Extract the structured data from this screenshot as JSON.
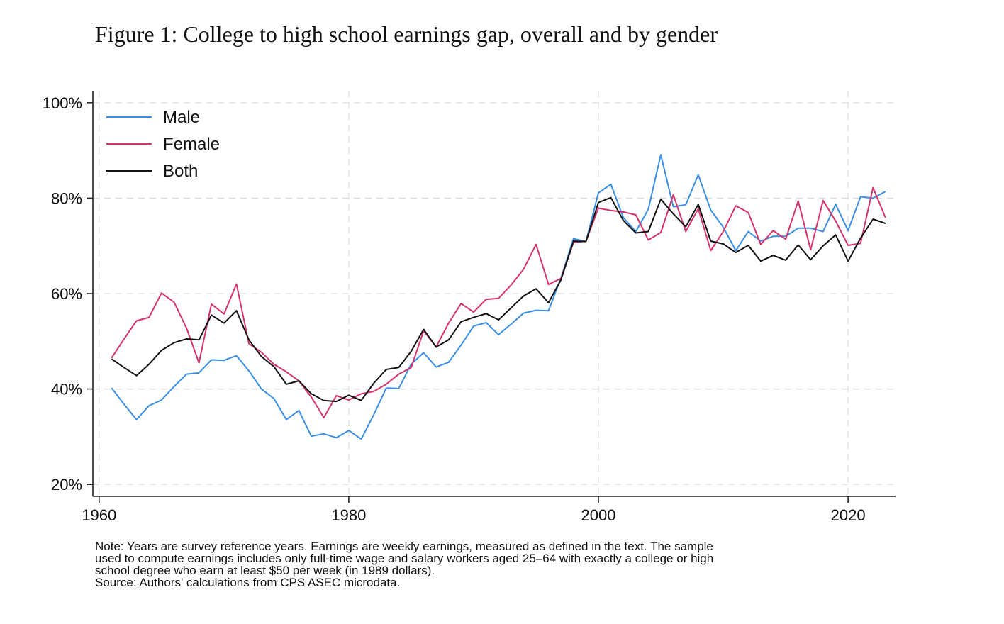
{
  "title": "Figure 1: College to high school earnings gap, overall and by gender",
  "note_lines": [
    "Note: Years are survey reference years. Earnings are weekly earnings, measured as defined in the text. The sample",
    "used to compute earnings includes only full-time wage and salary workers aged 25–64 with exactly a college or high",
    "school degree who earn at least $50 per week (in 1989 dollars).",
    "Source: Authors' calculations from CPS ASEC microdata."
  ],
  "colors": {
    "male": "#3a8ee6",
    "female": "#d6336c",
    "both": "#111111",
    "grid": "#dddddd",
    "axis": "#222222"
  },
  "chart_data": {
    "type": "line",
    "title": "Figure 1: College to high school earnings gap, overall and by gender",
    "xlabel": "",
    "ylabel": "",
    "xlim": [
      1959.5,
      2023.8
    ],
    "ylim": [
      17.5,
      102.5
    ],
    "x_ticks": [
      1960,
      1980,
      2000,
      2020
    ],
    "y_ticks": [
      20,
      40,
      60,
      80,
      100
    ],
    "y_tick_labels": [
      "20%",
      "40%",
      "60%",
      "80%",
      "100%"
    ],
    "grid": true,
    "legend_position": "top-left",
    "x": [
      1961,
      1962,
      1963,
      1964,
      1965,
      1966,
      1967,
      1968,
      1969,
      1970,
      1971,
      1972,
      1973,
      1974,
      1975,
      1976,
      1977,
      1978,
      1979,
      1980,
      1981,
      1982,
      1983,
      1984,
      1985,
      1986,
      1987,
      1988,
      1989,
      1990,
      1991,
      1992,
      1993,
      1994,
      1995,
      1996,
      1997,
      1998,
      1999,
      2000,
      2001,
      2002,
      2003,
      2004,
      2005,
      2006,
      2007,
      2008,
      2009,
      2010,
      2011,
      2012,
      2013,
      2014,
      2015,
      2016,
      2017,
      2018,
      2019,
      2020,
      2021,
      2022,
      2023
    ],
    "series": [
      {
        "name": "Male",
        "color": "#3a8ee6",
        "values": [
          40.2,
          36.8,
          33.6,
          36.5,
          37.7,
          40.5,
          43.1,
          43.4,
          46.1,
          46.0,
          47.0,
          43.8,
          40.0,
          38.0,
          33.6,
          35.5,
          30.1,
          30.6,
          29.8,
          31.3,
          29.5,
          34.6,
          40.2,
          40.1,
          45.2,
          47.6,
          44.6,
          45.6,
          49.2,
          53.2,
          53.9,
          51.4,
          53.6,
          55.9,
          56.5,
          56.4,
          63.3,
          71.5,
          70.9,
          81.1,
          82.9,
          75.9,
          73.0,
          77.7,
          89.1,
          78.2,
          78.6,
          84.9,
          77.5,
          73.9,
          69.0,
          73.0,
          71.0,
          72.0,
          72.0,
          73.7,
          73.7,
          73.0,
          78.7,
          73.2,
          80.3,
          80.0,
          81.4
        ]
      },
      {
        "name": "Female",
        "color": "#d6336c",
        "values": [
          46.5,
          50.5,
          54.3,
          55.0,
          60.1,
          58.2,
          52.8,
          45.5,
          57.8,
          55.7,
          62.0,
          49.5,
          47.7,
          45.2,
          43.6,
          41.7,
          38.3,
          34.0,
          38.6,
          37.7,
          39.0,
          39.5,
          41.0,
          43.1,
          44.5,
          52.2,
          48.8,
          53.8,
          57.9,
          56.1,
          58.8,
          59.0,
          61.8,
          65.1,
          70.3,
          61.9,
          63.2,
          70.7,
          71.0,
          77.9,
          77.4,
          77.1,
          76.5,
          71.2,
          72.8,
          80.7,
          73.0,
          77.8,
          69.0,
          73.0,
          78.4,
          77.0,
          70.3,
          73.2,
          71.4,
          79.4,
          69.2,
          79.5,
          75.2,
          70.1,
          70.5,
          82.2,
          75.9
        ]
      },
      {
        "name": "Both",
        "color": "#111111",
        "values": [
          46.3,
          44.5,
          42.8,
          45.2,
          48.1,
          49.7,
          50.5,
          50.3,
          55.5,
          53.8,
          56.4,
          50.3,
          46.8,
          44.7,
          41.0,
          41.7,
          39.0,
          37.6,
          37.4,
          38.7,
          37.6,
          41.2,
          44.1,
          44.5,
          47.9,
          52.5,
          48.8,
          50.3,
          54.1,
          55.0,
          55.8,
          54.5,
          57.0,
          59.5,
          61.0,
          58.1,
          62.9,
          71.0,
          70.9,
          79.1,
          80.1,
          75.3,
          72.7,
          73.0,
          79.8,
          76.7,
          74.0,
          78.7,
          71.0,
          70.4,
          68.6,
          70.1,
          66.8,
          68.0,
          67.0,
          70.2,
          67.1,
          70.0,
          72.3,
          66.8,
          71.6,
          75.6,
          74.7
        ]
      }
    ]
  }
}
